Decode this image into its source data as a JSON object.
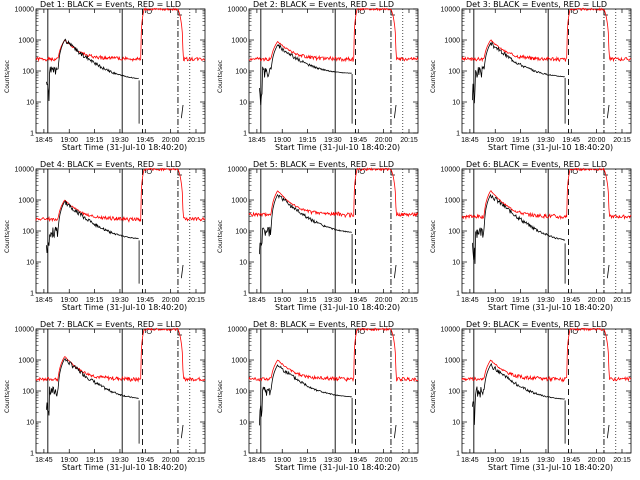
{
  "chart_data": [
    {
      "type": "line",
      "title": "Det  1: BLACK = Events, RED = LLD",
      "xlabel": "Start Time (31-Jul-10 18:40:20)",
      "ylabel": "Counts/sec",
      "x_ticks": [
        "18:45",
        "19:00",
        "19:15",
        "19:30",
        "19:45",
        "20:00",
        "20:15"
      ],
      "y_ticks": [
        "1",
        "10",
        "100",
        "1000",
        "10000"
      ],
      "ylim": [
        1,
        10000
      ],
      "xlim_minutes": [
        0,
        100
      ],
      "series": [
        {
          "name": "Events",
          "color": "#000000",
          "peak": 1000,
          "baseline_end": 50
        },
        {
          "name": "LLD",
          "color": "#ff0000",
          "peak": 1000,
          "baseline": 250,
          "saturated": 10000
        }
      ]
    },
    {
      "type": "line",
      "title": "Det  2: BLACK = Events, RED = LLD",
      "xlabel": "Start Time (31-Jul-10 18:40:20)",
      "ylabel": "Counts/sec",
      "x_ticks": [
        "18:45",
        "19:00",
        "19:15",
        "19:30",
        "19:45",
        "20:00",
        "20:15"
      ],
      "y_ticks": [
        "1",
        "10",
        "100",
        "1000",
        "10000"
      ],
      "ylim": [
        1,
        10000
      ],
      "xlim_minutes": [
        0,
        100
      ],
      "series": [
        {
          "name": "Events",
          "color": "#000000",
          "peak": 700,
          "baseline_end": 80
        },
        {
          "name": "LLD",
          "color": "#ff0000",
          "peak": 900,
          "baseline": 250,
          "saturated": 10000
        }
      ]
    },
    {
      "type": "line",
      "title": "Det  3: BLACK = Events, RED = LLD",
      "xlabel": "Start Time (31-Jul-10 18:40:20)",
      "ylabel": "Counts/sec",
      "x_ticks": [
        "18:45",
        "19:00",
        "19:15",
        "19:30",
        "19:45",
        "20:00",
        "20:15"
      ],
      "y_ticks": [
        "1",
        "10",
        "100",
        "1000",
        "10000"
      ],
      "ylim": [
        1,
        10000
      ],
      "xlim_minutes": [
        0,
        100
      ],
      "series": [
        {
          "name": "Events",
          "color": "#000000",
          "peak": 800,
          "baseline_end": 60
        },
        {
          "name": "LLD",
          "color": "#ff0000",
          "peak": 1000,
          "baseline": 250,
          "saturated": 10000
        }
      ]
    },
    {
      "type": "line",
      "title": "Det  4: BLACK = Events, RED = LLD",
      "xlabel": "Start Time (31-Jul-10 18:40:20)",
      "ylabel": "Counts/sec",
      "x_ticks": [
        "18:45",
        "19:00",
        "19:15",
        "19:30",
        "19:45",
        "20:00",
        "20:15"
      ],
      "y_ticks": [
        "1",
        "10",
        "100",
        "1000",
        "10000"
      ],
      "ylim": [
        1,
        10000
      ],
      "xlim_minutes": [
        0,
        100
      ],
      "series": [
        {
          "name": "Events",
          "color": "#000000",
          "peak": 900,
          "baseline_end": 50
        },
        {
          "name": "LLD",
          "color": "#ff0000",
          "peak": 1000,
          "baseline": 250,
          "saturated": 10000
        }
      ]
    },
    {
      "type": "line",
      "title": "Det  5: BLACK = Events, RED = LLD",
      "xlabel": "Start Time (31-Jul-10 18:40:20)",
      "ylabel": "Counts/sec",
      "x_ticks": [
        "18:45",
        "19:00",
        "19:15",
        "19:30",
        "19:45",
        "20:00",
        "20:15"
      ],
      "y_ticks": [
        "1",
        "10",
        "100",
        "1000",
        "10000"
      ],
      "ylim": [
        1,
        10000
      ],
      "xlim_minutes": [
        0,
        100
      ],
      "series": [
        {
          "name": "Events",
          "color": "#000000",
          "peak": 1500,
          "baseline_end": 80
        },
        {
          "name": "LLD",
          "color": "#ff0000",
          "peak": 2000,
          "baseline": 350,
          "saturated": 10000
        }
      ]
    },
    {
      "type": "line",
      "title": "Det  6: BLACK = Events, RED = LLD",
      "xlabel": "Start Time (31-Jul-10 18:40:20)",
      "ylabel": "Counts/sec",
      "x_ticks": [
        "18:45",
        "19:00",
        "19:15",
        "19:30",
        "19:45",
        "20:00",
        "20:15"
      ],
      "y_ticks": [
        "1",
        "10",
        "100",
        "1000",
        "10000"
      ],
      "ylim": [
        1,
        10000
      ],
      "xlim_minutes": [
        0,
        100
      ],
      "series": [
        {
          "name": "Events",
          "color": "#000000",
          "peak": 1500,
          "baseline_end": 40
        },
        {
          "name": "LLD",
          "color": "#ff0000",
          "peak": 2000,
          "baseline": 300,
          "saturated": 10000
        }
      ]
    },
    {
      "type": "line",
      "title": "Det  7: BLACK = Events, RED = LLD",
      "xlabel": "Start Time (31-Jul-10 18:40:20)",
      "ylabel": "Counts/sec",
      "x_ticks": [
        "18:45",
        "19:00",
        "19:15",
        "19:30",
        "19:45",
        "20:00",
        "20:15"
      ],
      "y_ticks": [
        "1",
        "10",
        "100",
        "1000",
        "10000"
      ],
      "ylim": [
        1,
        10000
      ],
      "xlim_minutes": [
        0,
        100
      ],
      "series": [
        {
          "name": "Events",
          "color": "#000000",
          "peak": 1100,
          "baseline_end": 50
        },
        {
          "name": "LLD",
          "color": "#ff0000",
          "peak": 1300,
          "baseline": 250,
          "saturated": 10000
        }
      ]
    },
    {
      "type": "line",
      "title": "Det  8: BLACK = Events, RED = LLD",
      "xlabel": "Start Time (31-Jul-10 18:40:20)",
      "ylabel": "Counts/sec",
      "x_ticks": [
        "18:45",
        "19:00",
        "19:15",
        "19:30",
        "19:45",
        "20:00",
        "20:15"
      ],
      "y_ticks": [
        "1",
        "10",
        "100",
        "1000",
        "10000"
      ],
      "ylim": [
        1,
        10000
      ],
      "xlim_minutes": [
        0,
        100
      ],
      "series": [
        {
          "name": "Events",
          "color": "#000000",
          "peak": 700,
          "baseline_end": 60
        },
        {
          "name": "LLD",
          "color": "#ff0000",
          "peak": 1000,
          "baseline": 250,
          "saturated": 10000
        }
      ]
    },
    {
      "type": "line",
      "title": "Det  9: BLACK = Events, RED = LLD",
      "xlabel": "Start Time (31-Jul-10 18:40:20)",
      "ylabel": "Counts/sec",
      "x_ticks": [
        "18:45",
        "19:00",
        "19:15",
        "19:30",
        "19:45",
        "20:00",
        "20:15"
      ],
      "y_ticks": [
        "1",
        "10",
        "100",
        "1000",
        "10000"
      ],
      "ylim": [
        1,
        10000
      ],
      "xlim_minutes": [
        0,
        100
      ],
      "series": [
        {
          "name": "Events",
          "color": "#000000",
          "peak": 700,
          "baseline_end": 50
        },
        {
          "name": "LLD",
          "color": "#ff0000",
          "peak": 1000,
          "baseline": 250,
          "saturated": 10000
        }
      ]
    }
  ]
}
